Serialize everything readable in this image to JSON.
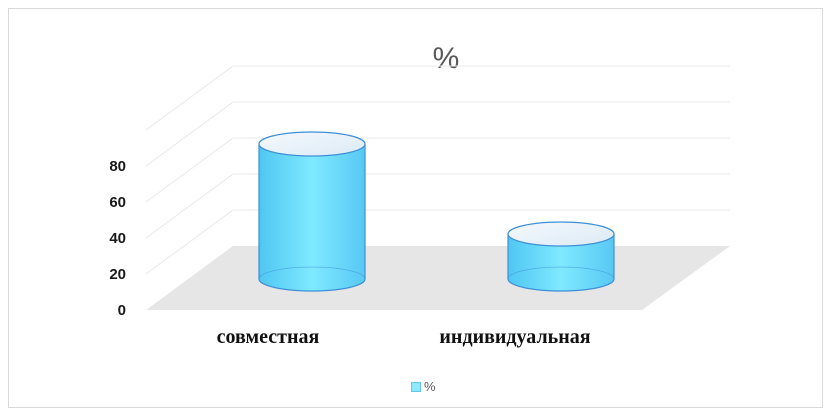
{
  "chart_data": {
    "type": "bar",
    "style": "3d-cylinder",
    "title": "%",
    "categories": [
      "совместная",
      "индивидуальная"
    ],
    "series": [
      {
        "name": "%",
        "values": [
          75,
          25
        ]
      }
    ],
    "ylim": [
      0,
      80
    ],
    "yticks": [
      "0",
      "20",
      "40",
      "60",
      "80"
    ],
    "grid": true,
    "legend": "bottom",
    "colors": {
      "bar": "#7fe6ff",
      "bar_edge": "#3f8fd6",
      "floor": "#e6e6e6",
      "grid": "#e8e8e8"
    }
  }
}
